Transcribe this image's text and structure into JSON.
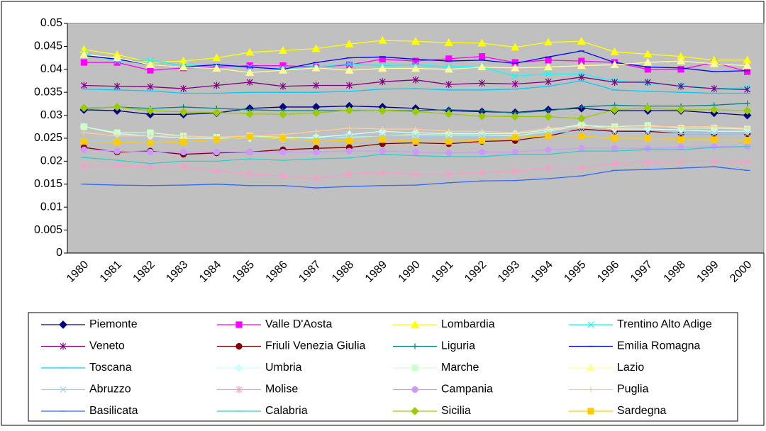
{
  "chart_data": {
    "type": "line",
    "categories": [
      "1980",
      "1981",
      "1982",
      "1983",
      "1984",
      "1985",
      "1986",
      "1987",
      "1988",
      "1989",
      "1990",
      "1991",
      "1992",
      "1993",
      "1994",
      "1995",
      "1996",
      "1997",
      "1998",
      "1999",
      "2000"
    ],
    "ylim": [
      0,
      0.05
    ],
    "yticks": [
      0,
      0.005,
      0.01,
      0.015,
      0.02,
      0.025,
      0.03,
      0.035,
      0.04,
      0.045,
      0.05
    ],
    "grid": false,
    "legend": "bottom",
    "series": [
      {
        "name": "Piemonte",
        "color": "#000080",
        "marker": "diamond",
        "values": [
          0.0312,
          0.031,
          0.0302,
          0.0302,
          0.0305,
          0.0315,
          0.0318,
          0.0318,
          0.032,
          0.0318,
          0.0315,
          0.031,
          0.0308,
          0.0306,
          0.0312,
          0.0315,
          0.031,
          0.031,
          0.031,
          0.0305,
          0.03
        ]
      },
      {
        "name": "Valle D'Aosta",
        "color": "#FF00FF",
        "marker": "square",
        "values": [
          0.0415,
          0.0415,
          0.0398,
          0.0403,
          0.0405,
          0.0408,
          0.0408,
          0.0405,
          0.041,
          0.0422,
          0.0418,
          0.0423,
          0.0428,
          0.0415,
          0.042,
          0.0418,
          0.0415,
          0.04,
          0.04,
          0.0415,
          0.0395
        ]
      },
      {
        "name": "Lombardia",
        "color": "#FFFF00",
        "marker": "triangle",
        "values": [
          0.0443,
          0.0432,
          0.0415,
          0.0418,
          0.0425,
          0.0437,
          0.0441,
          0.0445,
          0.0455,
          0.0463,
          0.0461,
          0.0458,
          0.0457,
          0.0448,
          0.0459,
          0.0461,
          0.0438,
          0.0433,
          0.0428,
          0.042,
          0.042
        ]
      },
      {
        "name": "Trentino Alto Adige",
        "color": "#00FFFF",
        "marker": "x",
        "values": [
          0.0435,
          0.0418,
          0.042,
          0.0408,
          0.0408,
          0.0405,
          0.0402,
          0.0405,
          0.0412,
          0.0408,
          0.041,
          0.0405,
          0.0405,
          0.0385,
          0.039,
          0.039,
          0.0375,
          0.037,
          0.0365,
          0.0358,
          0.036
        ]
      },
      {
        "name": "Veneto",
        "color": "#800080",
        "marker": "star",
        "values": [
          0.0365,
          0.0363,
          0.0362,
          0.0358,
          0.0365,
          0.0372,
          0.0363,
          0.0365,
          0.0365,
          0.0373,
          0.0377,
          0.0367,
          0.037,
          0.0368,
          0.0373,
          0.0383,
          0.0372,
          0.0372,
          0.0363,
          0.0358,
          0.0356
        ]
      },
      {
        "name": "Friuli Venezia Giulia",
        "color": "#800000",
        "marker": "circle",
        "values": [
          0.023,
          0.022,
          0.0222,
          0.0215,
          0.0218,
          0.022,
          0.0225,
          0.0228,
          0.023,
          0.0238,
          0.024,
          0.0238,
          0.0243,
          0.0245,
          0.0255,
          0.027,
          0.0265,
          0.0265,
          0.026,
          0.026,
          0.026
        ]
      },
      {
        "name": "Liguria",
        "color": "#008080",
        "marker": "plus",
        "values": [
          0.0315,
          0.0318,
          0.0315,
          0.0318,
          0.0315,
          0.0312,
          0.031,
          0.031,
          0.031,
          0.031,
          0.031,
          0.0312,
          0.031,
          0.0305,
          0.031,
          0.0318,
          0.0322,
          0.032,
          0.032,
          0.0322,
          0.0326
        ]
      },
      {
        "name": "Emilia Romagna",
        "color": "#0000FF",
        "marker": "dash",
        "values": [
          0.043,
          0.0422,
          0.041,
          0.0405,
          0.041,
          0.0405,
          0.04,
          0.0415,
          0.0425,
          0.0427,
          0.0422,
          0.0418,
          0.042,
          0.0413,
          0.0427,
          0.044,
          0.0415,
          0.0405,
          0.0403,
          0.0395,
          0.0397
        ]
      },
      {
        "name": "Toscana",
        "color": "#00CCFF",
        "marker": "dash",
        "values": [
          0.0357,
          0.0355,
          0.0353,
          0.0348,
          0.0348,
          0.035,
          0.035,
          0.035,
          0.0352,
          0.0357,
          0.0358,
          0.0355,
          0.0355,
          0.0357,
          0.0363,
          0.0375,
          0.0355,
          0.0352,
          0.035,
          0.0348,
          0.0348
        ]
      },
      {
        "name": "Umbria",
        "color": "#CCFFFF",
        "marker": "diamond",
        "values": [
          0.0275,
          0.026,
          0.0255,
          0.025,
          0.025,
          0.025,
          0.025,
          0.0252,
          0.0258,
          0.0265,
          0.0262,
          0.026,
          0.026,
          0.026,
          0.0268,
          0.028,
          0.027,
          0.027,
          0.0268,
          0.0265,
          0.0265
        ]
      },
      {
        "name": "Marche",
        "color": "#CCFFCC",
        "marker": "square",
        "values": [
          0.0275,
          0.0262,
          0.0262,
          0.0255,
          0.0252,
          0.0255,
          0.0252,
          0.025,
          0.0252,
          0.0255,
          0.0258,
          0.0257,
          0.0257,
          0.0255,
          0.0265,
          0.0278,
          0.0275,
          0.0278,
          0.0272,
          0.0272,
          0.027
        ]
      },
      {
        "name": "Lazio",
        "color": "#FFFF99",
        "marker": "triangle",
        "values": [
          0.0432,
          0.0425,
          0.041,
          0.0405,
          0.0402,
          0.0393,
          0.0398,
          0.0403,
          0.0398,
          0.0402,
          0.0402,
          0.04,
          0.0405,
          0.0403,
          0.0405,
          0.0408,
          0.041,
          0.0415,
          0.0418,
          0.0412,
          0.0408
        ]
      },
      {
        "name": "Abruzzo",
        "color": "#99CCFF",
        "marker": "x",
        "values": [
          0.0245,
          0.0245,
          0.0242,
          0.0242,
          0.0245,
          0.025,
          0.0248,
          0.0248,
          0.0255,
          0.0255,
          0.0255,
          0.0252,
          0.0255,
          0.0252,
          0.0262,
          0.0265,
          0.0262,
          0.0262,
          0.026,
          0.026,
          0.026
        ]
      },
      {
        "name": "Molise",
        "color": "#FF99CC",
        "marker": "star",
        "values": [
          0.019,
          0.019,
          0.0188,
          0.0188,
          0.0178,
          0.0172,
          0.0168,
          0.0162,
          0.0172,
          0.0175,
          0.0172,
          0.0172,
          0.0175,
          0.0178,
          0.0185,
          0.0185,
          0.0195,
          0.0198,
          0.02,
          0.02,
          0.0198
        ]
      },
      {
        "name": "Campania",
        "color": "#CC99FF",
        "marker": "circle",
        "values": [
          0.0225,
          0.0222,
          0.022,
          0.022,
          0.022,
          0.022,
          0.022,
          0.022,
          0.0222,
          0.0222,
          0.022,
          0.0218,
          0.022,
          0.022,
          0.0225,
          0.0228,
          0.0228,
          0.0228,
          0.023,
          0.0232,
          0.0232
        ]
      },
      {
        "name": "Puglia",
        "color": "#FFCC99",
        "marker": "plus",
        "values": [
          0.0262,
          0.0255,
          0.0255,
          0.0255,
          0.0252,
          0.0255,
          0.0258,
          0.0265,
          0.0272,
          0.027,
          0.027,
          0.0265,
          0.0265,
          0.0262,
          0.0272,
          0.0275,
          0.0272,
          0.0275,
          0.0275,
          0.0275,
          0.0272
        ]
      },
      {
        "name": "Basilicata",
        "color": "#3366FF",
        "marker": "dash",
        "values": [
          0.015,
          0.0148,
          0.0147,
          0.0148,
          0.015,
          0.0147,
          0.0147,
          0.0142,
          0.0145,
          0.0147,
          0.0148,
          0.0153,
          0.0157,
          0.0158,
          0.0162,
          0.0168,
          0.018,
          0.0182,
          0.0185,
          0.0188,
          0.018
        ]
      },
      {
        "name": "Calabria",
        "color": "#33CCCC",
        "marker": "dash",
        "values": [
          0.0208,
          0.0202,
          0.0195,
          0.02,
          0.02,
          0.0205,
          0.0202,
          0.0205,
          0.0207,
          0.0215,
          0.0212,
          0.021,
          0.021,
          0.0215,
          0.0215,
          0.0222,
          0.0222,
          0.0225,
          0.0225,
          0.023,
          0.0232
        ]
      },
      {
        "name": "Sicilia",
        "color": "#99CC00",
        "marker": "diamond",
        "values": [
          0.0316,
          0.0318,
          0.031,
          0.0307,
          0.0306,
          0.0303,
          0.0302,
          0.0305,
          0.0311,
          0.031,
          0.0308,
          0.0303,
          0.0298,
          0.0297,
          0.0297,
          0.0293,
          0.0312,
          0.0315,
          0.0312,
          0.0312,
          0.031
        ]
      },
      {
        "name": "Sardegna",
        "color": "#FFCC00",
        "marker": "square",
        "values": [
          0.0243,
          0.0242,
          0.024,
          0.0242,
          0.0247,
          0.0253,
          0.025,
          0.0243,
          0.0245,
          0.0247,
          0.0243,
          0.0243,
          0.0245,
          0.0252,
          0.0255,
          0.0255,
          0.025,
          0.025,
          0.0247,
          0.0247,
          0.0245
        ]
      }
    ]
  }
}
